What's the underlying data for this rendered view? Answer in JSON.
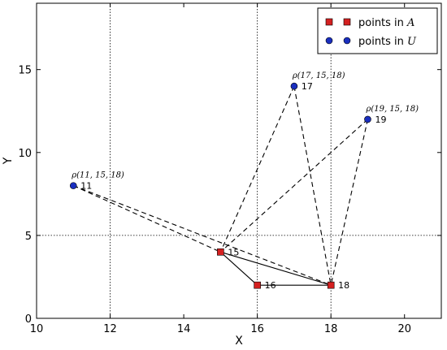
{
  "chart_data": {
    "type": "scatter",
    "xlabel": "X",
    "ylabel": "Y",
    "xlim": [
      10,
      21
    ],
    "ylim": [
      0,
      19
    ],
    "x_ticks": [
      10,
      12,
      14,
      16,
      18,
      20
    ],
    "y_ticks": [
      0,
      5,
      10,
      15
    ],
    "grid_lines": {
      "x": [
        12,
        16,
        18
      ],
      "y": [
        5
      ]
    },
    "legend": {
      "placement": "top-right",
      "entries": [
        {
          "prefix": "points in",
          "symbol": "A",
          "marker": "square",
          "color": "#d42020"
        },
        {
          "prefix": "points in",
          "symbol": "U",
          "marker": "circle",
          "color": "#1a2fbf"
        }
      ]
    },
    "series": [
      {
        "name": "points in A",
        "marker": "square",
        "color": "#d42020",
        "points": [
          {
            "label": "15",
            "x": 15,
            "y": 4
          },
          {
            "label": "16",
            "x": 16,
            "y": 2
          },
          {
            "label": "18",
            "x": 18,
            "y": 2
          }
        ]
      },
      {
        "name": "points in U",
        "marker": "circle",
        "color": "#1a2fbf",
        "points": [
          {
            "label": "11",
            "x": 11,
            "y": 8
          },
          {
            "label": "17",
            "x": 17,
            "y": 14
          },
          {
            "label": "19",
            "x": 19,
            "y": 12
          }
        ]
      }
    ],
    "solid_edges": [
      [
        "15",
        "16"
      ],
      [
        "16",
        "18"
      ],
      [
        "15",
        "18"
      ]
    ],
    "dashed_edges": [
      [
        "11",
        "15"
      ],
      [
        "11",
        "18"
      ],
      [
        "17",
        "15"
      ],
      [
        "17",
        "18"
      ],
      [
        "19",
        "15"
      ],
      [
        "19",
        "18"
      ]
    ],
    "annotations": [
      {
        "at": "11",
        "text": "ρ(11, 15, 18)"
      },
      {
        "at": "17",
        "text": "ρ(17, 15, 18)"
      },
      {
        "at": "19",
        "text": "ρ(19, 15, 18)"
      }
    ]
  }
}
